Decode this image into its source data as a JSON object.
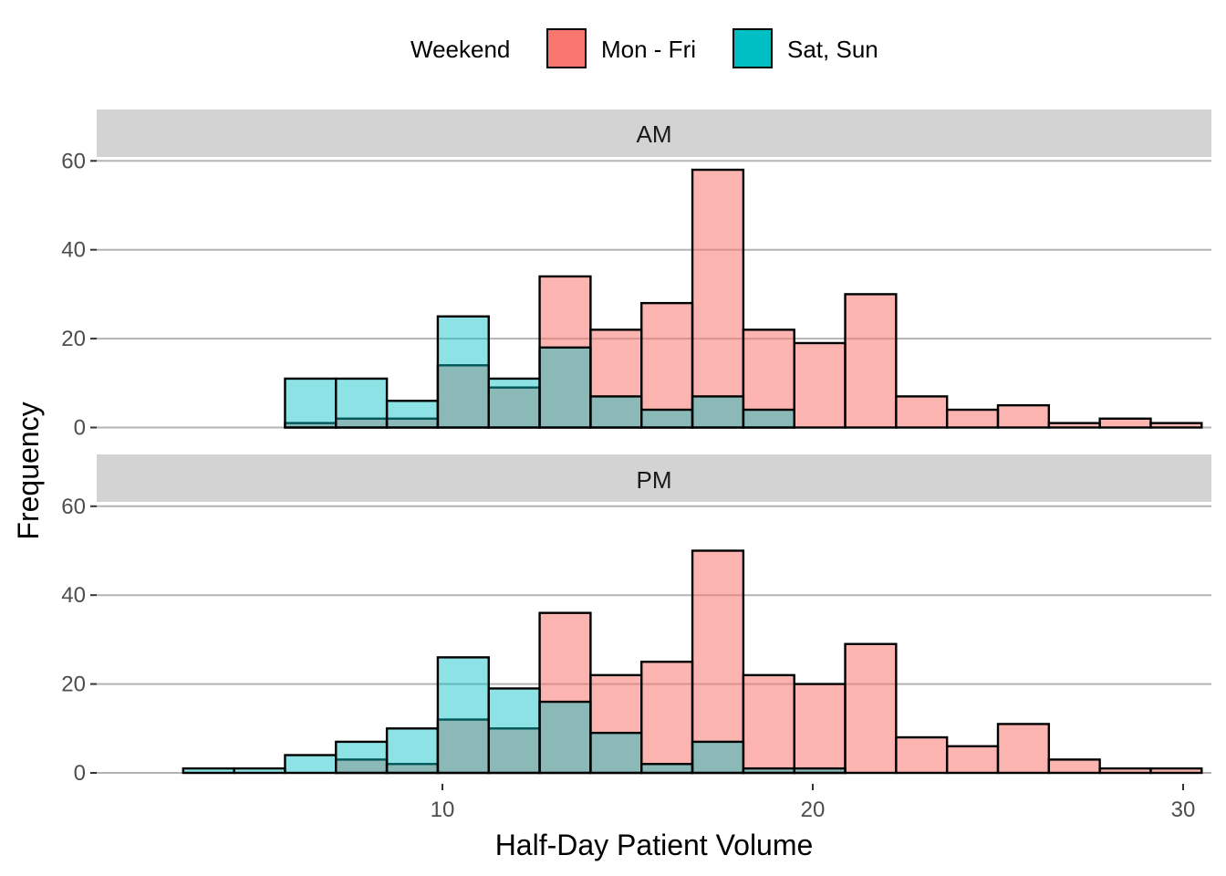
{
  "chart_data": {
    "type": "bar",
    "subtype": "overlaid-histogram",
    "xlabel": "Half-Day Patient Volume",
    "ylabel": "Frequency",
    "x_ticks": [
      10,
      20,
      30
    ],
    "y_ticks": [
      0,
      20,
      40,
      60
    ],
    "ylim": [
      0,
      62
    ],
    "grid": true,
    "legend": {
      "title": "Weekend",
      "position": "top",
      "entries": [
        {
          "name": "Mon - Fri",
          "color": "#F8766D"
        },
        {
          "name": "Sat, Sun",
          "color": "#00BFC4"
        }
      ]
    },
    "bins": [
      3,
      4.375,
      5.75,
      7.125,
      8.5,
      9.875,
      11.25,
      12.625,
      14,
      15.375,
      16.75,
      18.125,
      19.5,
      20.875,
      22.25,
      23.625,
      25,
      26.375,
      27.75,
      29.125
    ],
    "bin_width": 1.375,
    "panels": [
      {
        "name": "AM",
        "series": [
          {
            "name": "Mon - Fri",
            "values": [
              0,
              0,
              1,
              2,
              2,
              14,
              9,
              34,
              22,
              28,
              58,
              22,
              19,
              30,
              7,
              4,
              5,
              1,
              2,
              1
            ]
          },
          {
            "name": "Sat, Sun",
            "values": [
              0,
              0,
              11,
              11,
              6,
              25,
              11,
              18,
              7,
              4,
              7,
              4,
              0,
              0,
              0,
              0,
              0,
              0,
              0,
              0
            ]
          }
        ]
      },
      {
        "name": "PM",
        "series": [
          {
            "name": "Mon - Fri",
            "values": [
              0,
              0,
              0,
              3,
              2,
              12,
              10,
              36,
              22,
              25,
              50,
              22,
              20,
              29,
              8,
              6,
              11,
              3,
              1,
              1
            ]
          },
          {
            "name": "Sat, Sun",
            "values": [
              1,
              1,
              4,
              7,
              10,
              26,
              19,
              16,
              9,
              2,
              7,
              1,
              1,
              0,
              0,
              0,
              0,
              0,
              0,
              0
            ]
          }
        ]
      }
    ]
  },
  "colors": {
    "mon_fri_fill": "#F8766D",
    "sat_sun_fill": "#00BFC4",
    "strip_background": "#D3D3D3",
    "grid_line": "#B3B3B3"
  }
}
